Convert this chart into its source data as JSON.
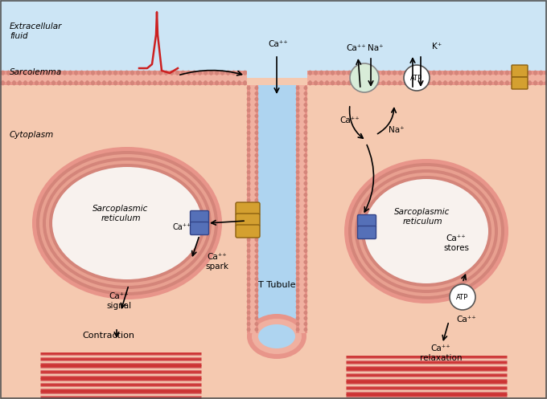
{
  "bg_extracellular": "#cce5f5",
  "bg_cytoplasm": "#f5c9b0",
  "bg_tubule": "#aed4f0",
  "membrane_outer": "#e8958a",
  "membrane_inner": "#f0b0a0",
  "membrane_stripe1": "#d4857a",
  "membrane_stripe2": "#e8a090",
  "sr_ring1": "#e8958a",
  "sr_ring2": "#d4857a",
  "sr_ring3": "#e8a090",
  "sr_inner": "#f8f2ee",
  "ryr_color": "#5570b8",
  "ryr_edge": "#334488",
  "dhpr_color": "#d4a030",
  "dhpr_edge": "#8B6010",
  "exchanger_color": "#d8ecd8",
  "exchanger_edge": "#888888",
  "atp_color": "#ffffff",
  "atp_edge": "#555555",
  "k_channel_color": "#d4a030",
  "k_channel_edge": "#8B6010",
  "action_potential_color": "#cc2020",
  "arrow_color": "#111111",
  "myofibril_dark": "#cc3333",
  "myofibril_light": "#dd7777",
  "label_extracellular": "Extracellular\nfluid",
  "label_sarcolemma": "Sarcolemma",
  "label_cytoplasm": "Cytoplasm",
  "label_t_tubule": "T Tubule",
  "label_sr_left": "Sarcoplasmic\nreticulum",
  "label_sr_right": "Sarcoplasmic\nreticulum",
  "label_ca_spark": "Ca⁺⁺\nspark",
  "label_ca_signal": "Ca⁺⁺\nsignal",
  "label_contraction": "Contraction",
  "label_ca_stores": "Ca⁺⁺\nstores",
  "label_ca_relaxation": "Ca⁺⁺\nrelaxation",
  "label_ca_tubule": "Ca⁺⁺",
  "label_ca_ryr": "Ca⁺⁺",
  "label_ca_right_ryr": "Ca⁺⁺",
  "label_ca_top": "Ca⁺⁺",
  "label_na_top": "Na⁺",
  "label_k_top": "K⁺",
  "label_ca_below": "Ca⁺⁺",
  "label_na_below": "Na⁺",
  "fig_width": 6.8,
  "fig_height": 4.97
}
